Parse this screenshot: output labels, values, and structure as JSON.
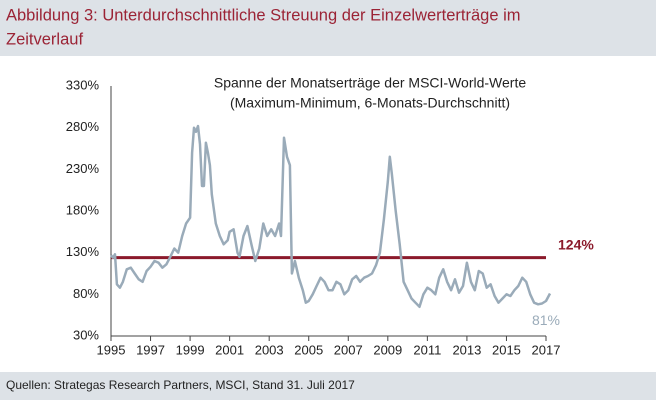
{
  "chart_data": {
    "type": "line",
    "title": "Abbildung 3: Unterdurchschnittliche Streuung der Einzelwerterträge im",
    "title_line2": "Zeitverlauf",
    "subtitle": "Spanne der Monatserträge der MSCI-World-Werte",
    "subtitle_line2": "(Maximum-Minimum, 6-Monats-Durchschnitt)",
    "source": "Quellen: Strategas Research Partners, MSCI, Stand 31. Juli 2017",
    "xlim": [
      1995,
      2017
    ],
    "xticks": [
      1995,
      1997,
      1999,
      2001,
      2003,
      2005,
      2007,
      2009,
      2011,
      2013,
      2015,
      2017
    ],
    "ylim": [
      30,
      330
    ],
    "yticks": [
      {
        "value": 30,
        "label": "30%"
      },
      {
        "value": 80,
        "label": "80%"
      },
      {
        "value": 130,
        "label": "130%"
      },
      {
        "value": 180,
        "label": "180%"
      },
      {
        "value": 230,
        "label": "230%"
      },
      {
        "value": 280,
        "label": "280%"
      },
      {
        "value": 330,
        "label": "330%"
      }
    ],
    "reference_line": {
      "value": 124,
      "label": "124%",
      "color": "#8b1a2b"
    },
    "x": [
      1995.0,
      1995.1,
      1995.2,
      1995.3,
      1995.45,
      1995.6,
      1995.8,
      1996.0,
      1996.2,
      1996.4,
      1996.6,
      1996.8,
      1997.0,
      1997.2,
      1997.4,
      1997.6,
      1997.8,
      1998.0,
      1998.2,
      1998.4,
      1998.6,
      1998.8,
      1999.0,
      1999.1,
      1999.2,
      1999.3,
      1999.4,
      1999.5,
      1999.6,
      1999.7,
      1999.8,
      1999.9,
      2000.0,
      2000.1,
      2000.3,
      2000.5,
      2000.7,
      2000.9,
      2001.0,
      2001.2,
      2001.4,
      2001.5,
      2001.7,
      2001.9,
      2002.1,
      2002.3,
      2002.5,
      2002.7,
      2002.9,
      2003.1,
      2003.3,
      2003.5,
      2003.6,
      2003.75,
      2003.9,
      2004.05,
      2004.15,
      2004.3,
      2004.5,
      2004.7,
      2004.85,
      2005.0,
      2005.2,
      2005.4,
      2005.6,
      2005.8,
      2006.0,
      2006.2,
      2006.4,
      2006.6,
      2006.8,
      2007.0,
      2007.2,
      2007.4,
      2007.6,
      2007.8,
      2008.0,
      2008.2,
      2008.4,
      2008.6,
      2008.8,
      2009.0,
      2009.1,
      2009.2,
      2009.4,
      2009.6,
      2009.8,
      2010.0,
      2010.2,
      2010.4,
      2010.6,
      2010.8,
      2011.0,
      2011.2,
      2011.4,
      2011.6,
      2011.8,
      2012.0,
      2012.2,
      2012.4,
      2012.6,
      2012.8,
      2013.0,
      2013.2,
      2013.4,
      2013.6,
      2013.8,
      2014.0,
      2014.2,
      2014.4,
      2014.6,
      2014.8,
      2015.0,
      2015.2,
      2015.4,
      2015.6,
      2015.8,
      2016.0,
      2016.2,
      2016.4,
      2016.6,
      2016.8,
      2017.0,
      2017.2
    ],
    "series": [
      {
        "color": "#9aabb9",
        "end_label": "81%",
        "values": [
          127,
          124,
          128,
          92,
          88,
          95,
          110,
          112,
          105,
          98,
          95,
          108,
          113,
          120,
          118,
          112,
          116,
          125,
          135,
          130,
          150,
          165,
          172,
          250,
          280,
          275,
          282,
          260,
          210,
          210,
          262,
          250,
          235,
          200,
          165,
          150,
          140,
          145,
          155,
          158,
          130,
          125,
          150,
          162,
          140,
          120,
          135,
          165,
          150,
          158,
          150,
          165,
          150,
          268,
          245,
          235,
          105,
          120,
          100,
          85,
          70,
          72,
          80,
          90,
          100,
          95,
          85,
          85,
          95,
          92,
          80,
          85,
          98,
          102,
          95,
          100,
          102,
          105,
          115,
          130,
          170,
          215,
          245,
          225,
          180,
          140,
          95,
          85,
          75,
          70,
          65,
          80,
          88,
          85,
          80,
          100,
          110,
          95,
          85,
          98,
          82,
          90,
          118,
          95,
          85,
          108,
          105,
          88,
          92,
          78,
          70,
          75,
          80,
          78,
          85,
          90,
          100,
          95,
          80,
          70,
          68,
          69,
          72,
          81
        ]
      }
    ]
  }
}
